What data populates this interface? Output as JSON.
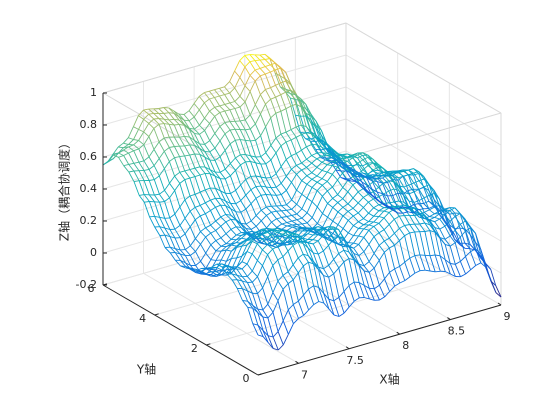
{
  "chart_data": {
    "type": "surface",
    "style": "mesh",
    "colormap": "parula",
    "xlabel": "X轴",
    "ylabel": "Y轴",
    "zlabel": "Z轴（耦合协调度）",
    "xlim": [
      6.6,
      9.0
    ],
    "ylim": [
      0,
      6
    ],
    "zlim": [
      -0.2,
      1.0
    ],
    "x_ticks": [
      "7",
      "7.5",
      "8",
      "8.5",
      "9"
    ],
    "x_tick_values": [
      7,
      7.5,
      8,
      8.5,
      9
    ],
    "y_ticks": [
      "0",
      "2",
      "4",
      "6"
    ],
    "y_tick_values": [
      0,
      2,
      4,
      6
    ],
    "z_ticks": [
      "-0.2",
      "0",
      "0.2",
      "0.4",
      "0.6",
      "0.8",
      "1"
    ],
    "z_tick_values": [
      -0.2,
      0,
      0.2,
      0.4,
      0.6,
      0.8,
      1.0
    ],
    "grid": true,
    "x_samples": [
      6.6,
      6.8,
      7.0,
      7.2,
      7.4,
      7.6,
      7.8,
      8.0,
      8.2,
      8.4,
      8.6,
      8.8,
      9.0
    ],
    "y_samples": [
      0,
      0.5,
      1.0,
      1.5,
      2.0,
      2.5,
      3.0,
      3.5,
      4.0,
      4.5,
      5.0,
      5.5,
      6.0
    ],
    "z_values_by_y": [
      [
        0.05,
        -0.08,
        0.08,
        0.15,
        0.02,
        0.1,
        0.05,
        0.12,
        0.16,
        0.12,
        0.05,
        0.1,
        -0.15
      ],
      [
        0.2,
        0.1,
        0.28,
        0.38,
        0.25,
        0.33,
        0.2,
        0.32,
        0.38,
        0.36,
        0.22,
        0.3,
        0.0
      ],
      [
        0.3,
        0.25,
        0.42,
        0.48,
        0.38,
        0.45,
        0.28,
        0.38,
        0.45,
        0.42,
        0.3,
        0.35,
        0.05
      ],
      [
        0.35,
        0.3,
        0.45,
        0.46,
        0.35,
        0.4,
        0.25,
        0.35,
        0.42,
        0.4,
        0.28,
        0.3,
        0.02
      ],
      [
        0.28,
        0.2,
        0.38,
        0.42,
        0.28,
        0.35,
        0.25,
        0.38,
        0.45,
        0.5,
        0.38,
        0.4,
        0.1
      ],
      [
        0.22,
        0.15,
        0.3,
        0.35,
        0.22,
        0.3,
        0.25,
        0.4,
        0.5,
        0.55,
        0.45,
        0.45,
        0.18
      ],
      [
        0.2,
        0.12,
        0.25,
        0.3,
        0.2,
        0.28,
        0.28,
        0.45,
        0.55,
        0.58,
        0.42,
        0.4,
        0.12
      ],
      [
        0.25,
        0.2,
        0.3,
        0.35,
        0.25,
        0.32,
        0.3,
        0.45,
        0.52,
        0.52,
        0.35,
        0.32,
        0.05
      ],
      [
        0.35,
        0.3,
        0.4,
        0.42,
        0.35,
        0.42,
        0.38,
        0.48,
        0.52,
        0.48,
        0.3,
        0.25,
        0.0
      ],
      [
        0.48,
        0.45,
        0.55,
        0.55,
        0.48,
        0.55,
        0.5,
        0.6,
        0.62,
        0.5,
        0.3,
        0.22,
        0.0
      ],
      [
        0.6,
        0.58,
        0.68,
        0.66,
        0.58,
        0.68,
        0.65,
        0.8,
        0.82,
        0.62,
        0.35,
        0.22,
        0.02
      ],
      [
        0.66,
        0.68,
        0.8,
        0.76,
        0.66,
        0.76,
        0.76,
        0.92,
        0.93,
        0.7,
        0.4,
        0.22,
        0.05
      ],
      [
        0.55,
        0.65,
        0.82,
        0.8,
        0.72,
        0.82,
        0.82,
        0.98,
        0.95,
        0.68,
        0.35,
        0.18,
        0.02
      ]
    ]
  }
}
